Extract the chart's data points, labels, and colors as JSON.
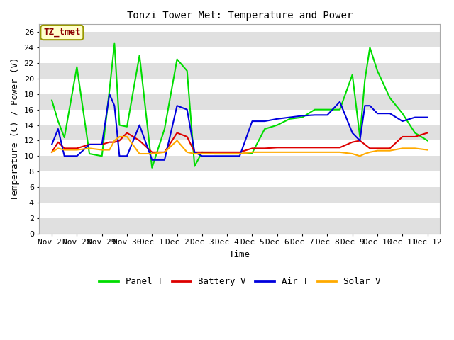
{
  "title": "Tonzi Tower Met: Temperature and Power",
  "xlabel": "Time",
  "ylabel": "Temperature (C) / Power (V)",
  "annotation": "TZ_tmet",
  "ylim": [
    0,
    27
  ],
  "yticks": [
    0,
    2,
    4,
    6,
    8,
    10,
    12,
    14,
    16,
    18,
    20,
    22,
    24,
    26
  ],
  "xtick_labels": [
    "Nov 27",
    "Nov 28",
    "Nov 29",
    "Nov 30",
    "Dec 1",
    "Dec 2",
    "Dec 3",
    "Dec 4",
    "Dec 5",
    "Dec 6",
    "Dec 7",
    "Dec 8",
    "Dec 9",
    "Dec 10",
    "Dec 11",
    "Dec 12"
  ],
  "fig_bg_color": "#ffffff",
  "plot_bg_color": "#ffffff",
  "stripe_color": "#e0e0e0",
  "grid_color": "#ffffff",
  "series": {
    "panel_t": {
      "color": "#00dd00",
      "label": "Panel T",
      "x": [
        0,
        0.25,
        0.5,
        1.0,
        1.5,
        2.0,
        2.3,
        2.5,
        2.7,
        3.0,
        3.5,
        4.0,
        4.5,
        5.0,
        5.4,
        5.7,
        6.0,
        6.5,
        7.0,
        7.5,
        8.0,
        8.5,
        9.0,
        9.5,
        10.0,
        10.5,
        11.0,
        11.5,
        12.0,
        12.3,
        12.5,
        12.7,
        13.0,
        13.5,
        14.0,
        14.5,
        15.0
      ],
      "y": [
        17.2,
        14.5,
        12.4,
        21.5,
        10.3,
        10.0,
        18.5,
        24.5,
        14.0,
        13.8,
        23.0,
        8.5,
        13.5,
        22.5,
        21.0,
        8.7,
        10.5,
        10.3,
        10.3,
        10.3,
        10.4,
        13.5,
        14.0,
        14.8,
        15.0,
        16.0,
        16.0,
        16.0,
        20.5,
        12.5,
        19.8,
        24.0,
        21.0,
        17.5,
        15.5,
        13.0,
        12.0
      ]
    },
    "battery_v": {
      "color": "#dd0000",
      "label": "Battery V",
      "x": [
        0,
        0.25,
        0.5,
        1.0,
        1.5,
        2.0,
        2.3,
        2.5,
        2.7,
        3.0,
        3.5,
        4.0,
        4.5,
        5.0,
        5.4,
        5.7,
        6.0,
        6.5,
        7.0,
        7.5,
        8.0,
        8.5,
        9.0,
        9.5,
        10.0,
        10.5,
        11.0,
        11.5,
        12.0,
        12.3,
        12.5,
        12.7,
        13.0,
        13.5,
        14.0,
        14.5,
        15.0
      ],
      "y": [
        10.5,
        11.8,
        11.0,
        11.0,
        11.5,
        11.5,
        11.8,
        11.8,
        12.0,
        13.0,
        12.0,
        10.5,
        10.5,
        13.0,
        12.5,
        10.5,
        10.5,
        10.5,
        10.5,
        10.5,
        11.0,
        11.0,
        11.1,
        11.1,
        11.1,
        11.1,
        11.1,
        11.1,
        11.8,
        12.0,
        11.5,
        11.0,
        11.0,
        11.0,
        12.5,
        12.5,
        13.0
      ]
    },
    "air_t": {
      "color": "#0000dd",
      "label": "Air T",
      "x": [
        0,
        0.25,
        0.5,
        1.0,
        1.5,
        2.0,
        2.3,
        2.5,
        2.7,
        3.0,
        3.5,
        4.0,
        4.5,
        5.0,
        5.4,
        5.7,
        6.0,
        6.5,
        7.0,
        7.5,
        8.0,
        8.5,
        9.0,
        9.5,
        10.0,
        10.5,
        11.0,
        11.5,
        12.0,
        12.3,
        12.5,
        12.7,
        13.0,
        13.5,
        14.0,
        14.5,
        15.0
      ],
      "y": [
        11.5,
        13.5,
        10.0,
        10.0,
        11.5,
        11.5,
        18.0,
        16.5,
        10.0,
        10.0,
        14.0,
        9.5,
        9.5,
        16.5,
        16.0,
        10.5,
        10.0,
        10.0,
        10.0,
        10.0,
        14.5,
        14.5,
        14.8,
        15.0,
        15.2,
        15.3,
        15.3,
        17.0,
        13.0,
        12.0,
        16.5,
        16.5,
        15.5,
        15.5,
        14.5,
        15.0,
        15.0
      ]
    },
    "solar_v": {
      "color": "#ffaa00",
      "label": "Solar V",
      "x": [
        0,
        0.25,
        0.5,
        1.0,
        1.5,
        2.0,
        2.3,
        2.5,
        2.7,
        3.0,
        3.5,
        4.0,
        4.5,
        5.0,
        5.4,
        5.7,
        6.0,
        6.5,
        7.0,
        7.5,
        8.0,
        8.5,
        9.0,
        9.5,
        10.0,
        10.5,
        11.0,
        11.5,
        12.0,
        12.3,
        12.5,
        12.7,
        13.0,
        13.5,
        14.0,
        14.5,
        15.0
      ],
      "y": [
        10.5,
        11.0,
        10.8,
        10.8,
        11.0,
        10.8,
        10.8,
        12.0,
        12.5,
        12.5,
        10.3,
        10.3,
        10.5,
        12.0,
        10.5,
        10.3,
        10.3,
        10.3,
        10.3,
        10.3,
        10.5,
        10.5,
        10.5,
        10.5,
        10.5,
        10.5,
        10.5,
        10.5,
        10.3,
        10.0,
        10.3,
        10.5,
        10.7,
        10.7,
        11.0,
        11.0,
        10.8
      ]
    }
  }
}
